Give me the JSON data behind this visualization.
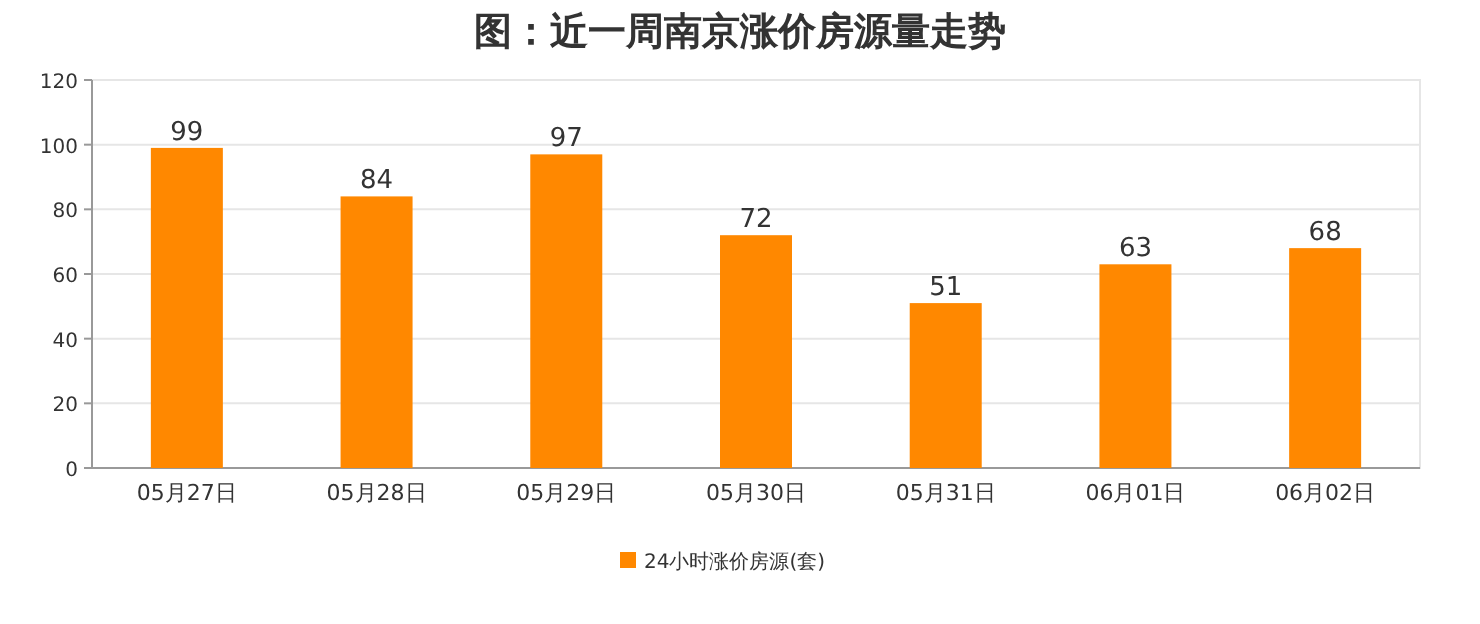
{
  "chart_data": {
    "type": "bar",
    "title": "图：近一周南京涨价房源量走势",
    "categories": [
      "05月27日",
      "05月28日",
      "05月29日",
      "05月30日",
      "05月31日",
      "06月01日",
      "06月02日"
    ],
    "series": [
      {
        "name": "24小时涨价房源(套)",
        "color": "#ff8800",
        "values": [
          99,
          84,
          97,
          72,
          51,
          63,
          68
        ]
      }
    ],
    "ylim": [
      0,
      120
    ],
    "yticks": [
      0,
      20,
      40,
      60,
      80,
      100,
      120
    ],
    "grid": "y",
    "legend": "bottom",
    "data_labels": true
  }
}
